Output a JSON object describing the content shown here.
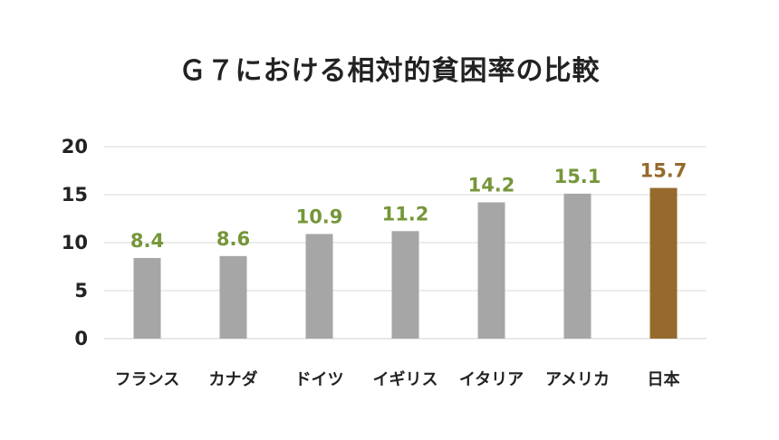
{
  "chart_data": {
    "type": "bar",
    "title": "Ｇ７における相対的貧困率の比較",
    "xlabel": "",
    "ylabel": "",
    "categories": [
      "フランス",
      "カナダ",
      "ドイツ",
      "イギリス",
      "イタリア",
      "アメリカ",
      "日本"
    ],
    "values": [
      8.4,
      8.6,
      10.9,
      11.2,
      14.2,
      15.1,
      15.7
    ],
    "data_labels": [
      "8.4",
      "8.6",
      "10.9",
      "11.2",
      "14.2",
      "15.1",
      "15.7"
    ],
    "ylim": [
      0,
      20
    ],
    "yticks": [
      0,
      5,
      10,
      15,
      20
    ],
    "ytick_labels": [
      "0",
      "5",
      "10",
      "15",
      "20"
    ],
    "grid": true,
    "legend": "none",
    "highlight_index": 6,
    "colors": {
      "bar": "#a6a6a6",
      "bar_highlight": "#956a2c",
      "label": "#76963a",
      "label_highlight": "#956a2c",
      "grid": "#d9d9d9",
      "text": "#222222"
    }
  }
}
